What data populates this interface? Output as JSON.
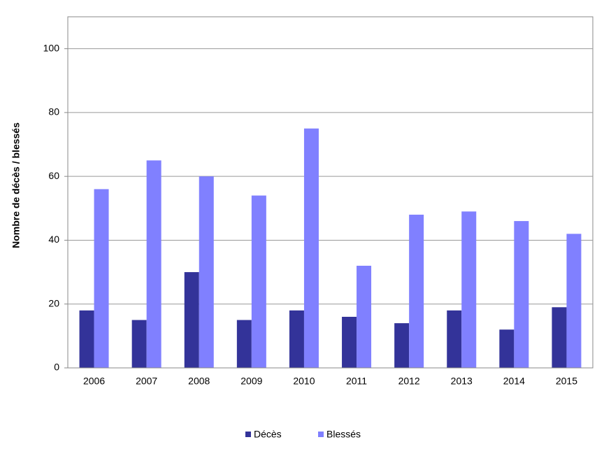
{
  "chart_data": {
    "type": "bar",
    "y_label": "Nombre de décès / blessés",
    "categories": [
      "2006",
      "2007",
      "2008",
      "2009",
      "2010",
      "2011",
      "2012",
      "2013",
      "2014",
      "2015"
    ],
    "series": [
      {
        "name": "Décès",
        "color": "#333399",
        "values": [
          18,
          15,
          30,
          15,
          18,
          16,
          14,
          18,
          12,
          19
        ]
      },
      {
        "name": "Blessés",
        "color": "#8080ff",
        "values": [
          56,
          65,
          60,
          54,
          75,
          32,
          48,
          49,
          46,
          42
        ]
      }
    ],
    "ylim": [
      0,
      110
    ],
    "yticks": [
      0,
      20,
      40,
      60,
      80,
      100
    ],
    "grid": true,
    "legend": "bottom"
  }
}
